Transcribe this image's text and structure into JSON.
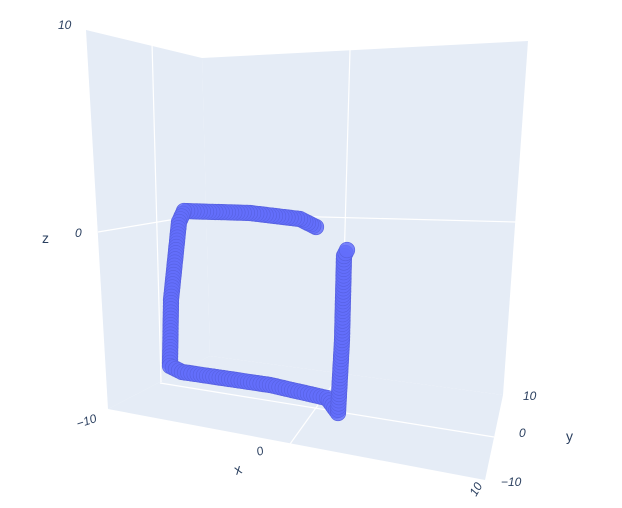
{
  "chart_data": {
    "type": "scatter3d",
    "title": "",
    "colors": {
      "marker": "#636efa",
      "pane": "#e5ecf6",
      "grid": "#ffffff",
      "text": "#2a3f5f"
    },
    "axes": {
      "x": {
        "title": "x",
        "ticks": [
          "10",
          "0"
        ]
      },
      "y": {
        "title": "y",
        "ticks": [
          "10",
          "0",
          "−10"
        ]
      },
      "z": {
        "title": "z",
        "ticks": [
          "10",
          "0",
          "−10"
        ]
      }
    },
    "series": [
      {
        "mode": "markers",
        "description_path": "square loop: top edge, left edge, bottom edge, right edge (open at upper right)"
      }
    ]
  }
}
